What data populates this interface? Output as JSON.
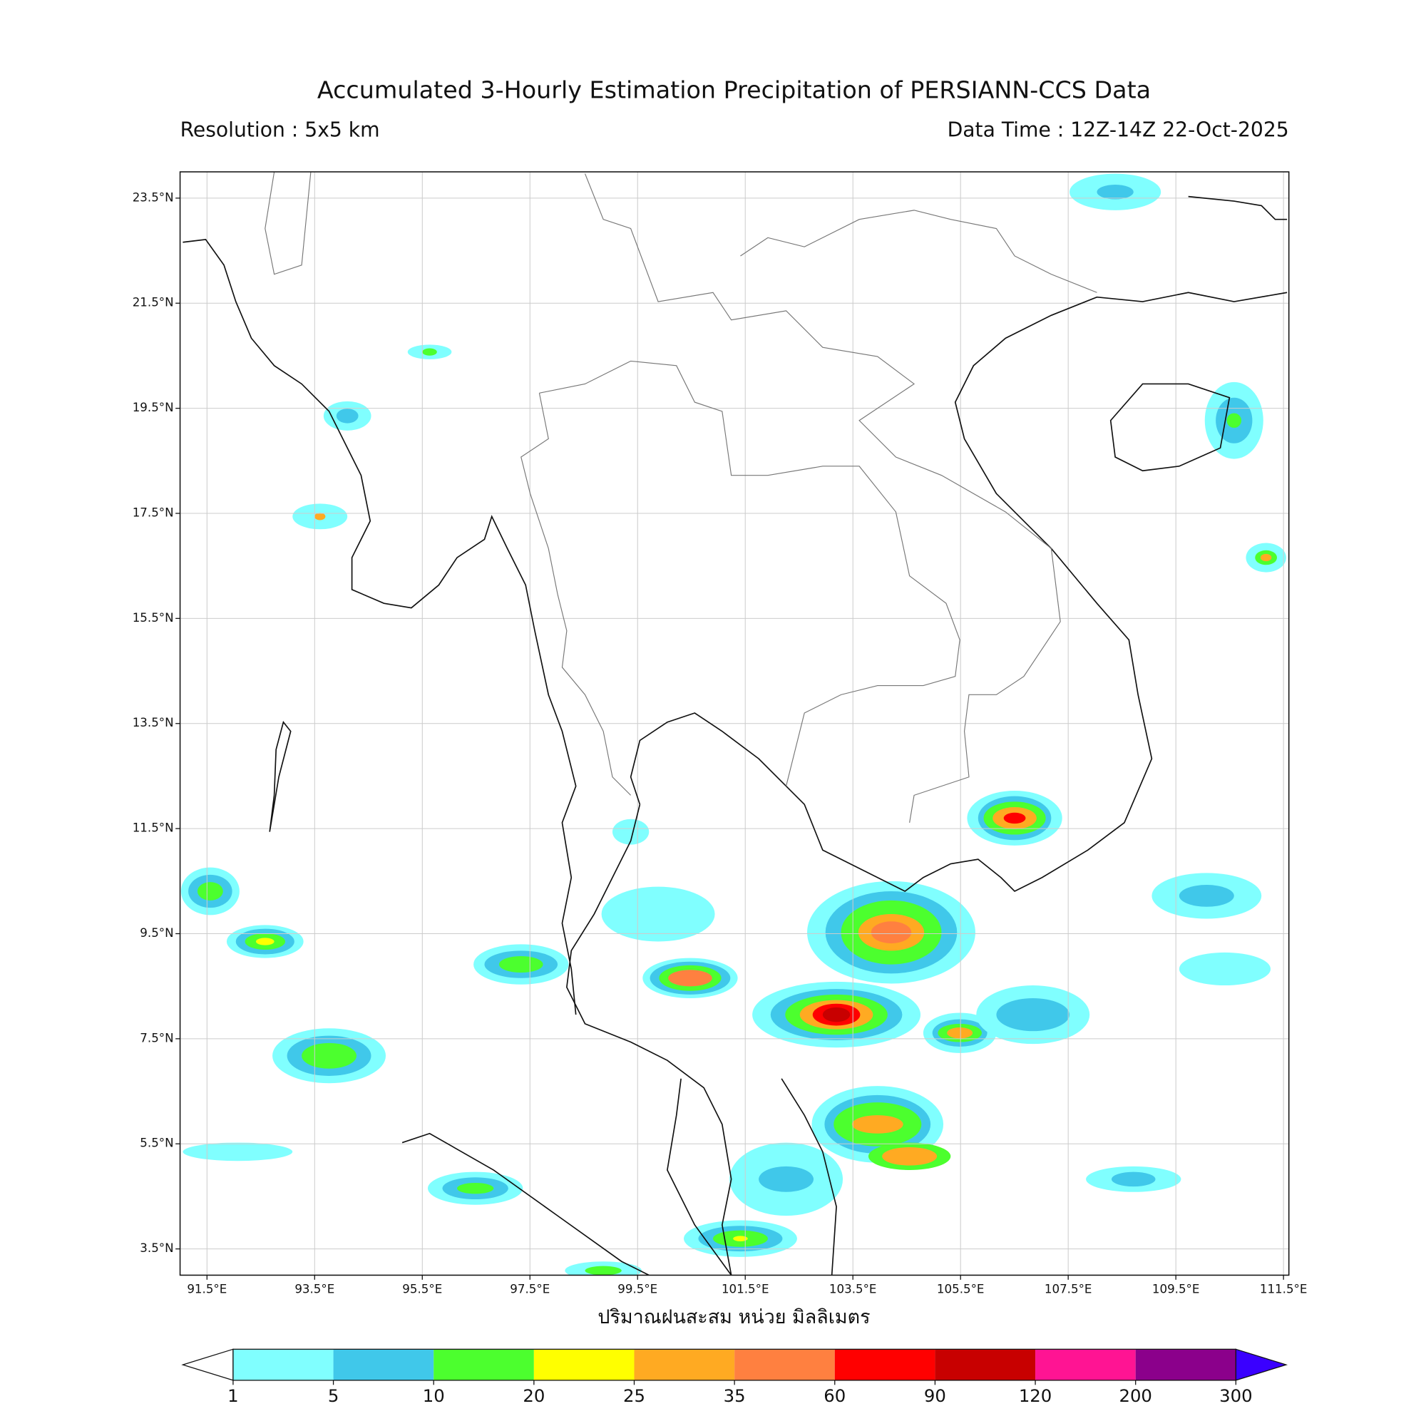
{
  "title": "Accumulated 3-Hourly Estimation Precipitation of PERSIANN-CCS Data",
  "resolution": "Resolution : 5x5 km",
  "data_time": "Data Time : 12Z-14Z 22-Oct-2025",
  "map": {
    "lon_range": [
      91.0,
      111.6
    ],
    "lat_range": [
      3.0,
      24.0
    ],
    "grid": true,
    "lon_ticks": [
      {
        "value": 91.5,
        "label": "91.5°E"
      },
      {
        "value": 93.5,
        "label": "93.5°E"
      },
      {
        "value": 95.5,
        "label": "95.5°E"
      },
      {
        "value": 97.5,
        "label": "97.5°E"
      },
      {
        "value": 99.5,
        "label": "99.5°E"
      },
      {
        "value": 101.5,
        "label": "101.5°E"
      },
      {
        "value": 103.5,
        "label": "103.5°E"
      },
      {
        "value": 105.5,
        "label": "105.5°E"
      },
      {
        "value": 107.5,
        "label": "107.5°E"
      },
      {
        "value": 109.5,
        "label": "109.5°E"
      },
      {
        "value": 111.5,
        "label": "111.5°E"
      }
    ],
    "lat_ticks": [
      {
        "value": 23.5,
        "label": "23.5°N"
      },
      {
        "value": 21.5,
        "label": "21.5°N"
      },
      {
        "value": 19.5,
        "label": "19.5°N"
      },
      {
        "value": 17.5,
        "label": "17.5°N"
      },
      {
        "value": 15.5,
        "label": "15.5°N"
      },
      {
        "value": 13.5,
        "label": "13.5°N"
      },
      {
        "value": 11.5,
        "label": "11.5°N"
      },
      {
        "value": 9.5,
        "label": "9.5°N"
      },
      {
        "value": 7.5,
        "label": "7.5°N"
      },
      {
        "value": 5.5,
        "label": "5.5°N"
      },
      {
        "value": 3.5,
        "label": "3.5°N"
      }
    ]
  },
  "colorbar": {
    "label": "ปริมาณฝนสะสม หน่วย มิลลิเมตร",
    "levels": [
      1,
      5,
      10,
      20,
      25,
      35,
      60,
      90,
      120,
      200,
      300
    ],
    "colors": [
      "#80ffff",
      "#40c8ea",
      "#4cff2e",
      "#ffff00",
      "#ffaa22",
      "#ff8040",
      "#ff0000",
      "#c80000",
      "#ff1493",
      "#8b008b"
    ],
    "under_color": "#ffffff",
    "over_color": "#3a00ff"
  }
}
